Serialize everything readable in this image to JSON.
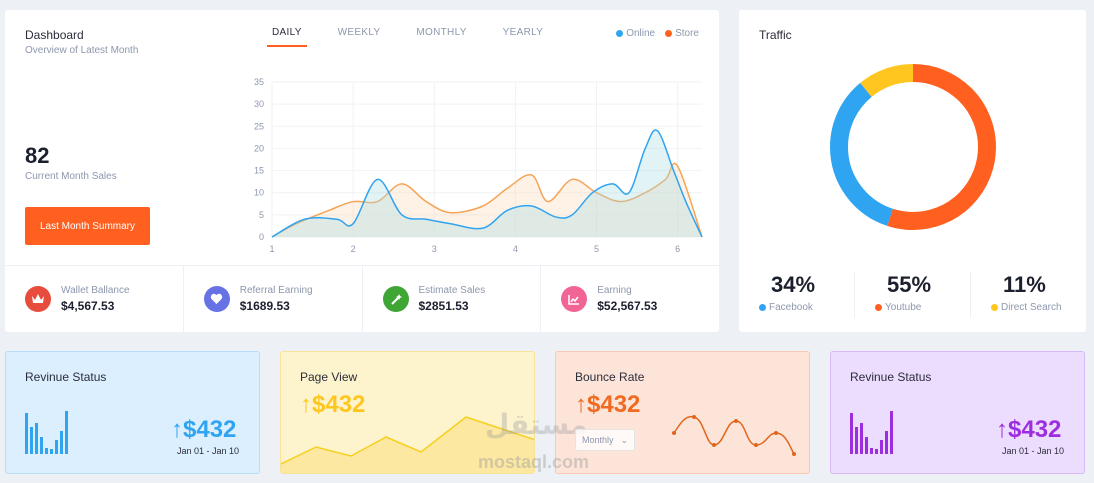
{
  "dashboard": {
    "title": "Dashboard",
    "subtitle": "Overview of Latest Month",
    "tabs": [
      {
        "label": "DAILY",
        "active": true
      },
      {
        "label": "WEEKLY",
        "active": false
      },
      {
        "label": "MONTHLY",
        "active": false
      },
      {
        "label": "YEARLY",
        "active": false
      }
    ],
    "legend": [
      {
        "label": "Online",
        "color": "#2fa4f1"
      },
      {
        "label": "Store",
        "color": "#ff5f1f"
      }
    ],
    "current_sales_value": "82",
    "current_sales_label": "Current Month Sales",
    "summary_button": "Last Month Summary"
  },
  "stats": [
    {
      "label": "Wallet Ballance",
      "value": "$4,567.53",
      "icon": "crown-icon",
      "color": "#e74c3c"
    },
    {
      "label": "Referral Earning",
      "value": "$1689.53",
      "icon": "heart-icon",
      "color": "#6772e5"
    },
    {
      "label": "Estimate Sales",
      "value": "$2851.53",
      "icon": "magic-wand-icon",
      "color": "#3fa535"
    },
    {
      "label": "Earning",
      "value": "$52,567.53",
      "icon": "chart-icon",
      "color": "#f06595"
    }
  ],
  "traffic": {
    "title": "Traffic",
    "segments": [
      {
        "label": "Facebook",
        "value": "34%",
        "percent": 34,
        "color": "#2fa4f1"
      },
      {
        "label": "Youtube",
        "value": "55%",
        "percent": 55,
        "color": "#ff5f1f"
      },
      {
        "label": "Direct Search",
        "value": "11%",
        "percent": 11,
        "color": "#fec61e"
      }
    ]
  },
  "mini_cards": [
    {
      "title": "Revinue Status",
      "value": "$432",
      "date": "Jan 01 - Jan 10",
      "color": "#2fa4f1",
      "arrow": true
    },
    {
      "title": "Page View",
      "value": "$432",
      "color": "#fec61e",
      "arrow": true
    },
    {
      "title": "Bounce Rate",
      "value": "$432",
      "color": "#f06a21",
      "arrow": true,
      "select_value": "Monthly"
    },
    {
      "title": "Revinue Status",
      "value": "$432",
      "date": "Jan 01 - Jan 10",
      "color": "#9d2ee0",
      "arrow": true
    }
  ],
  "watermark": {
    "text": "mostaql.com",
    "text_ar": "مستقل"
  },
  "chart_data": {
    "type": "area",
    "x_ticks": [
      "1",
      "2",
      "3",
      "4",
      "5",
      "6"
    ],
    "y_ticks": [
      "0",
      "5",
      "10",
      "15",
      "20",
      "25",
      "30",
      "35"
    ],
    "xlim": [
      1,
      6.3
    ],
    "ylim": [
      0,
      35
    ],
    "series": [
      {
        "name": "Online",
        "color": "#2fa4f1",
        "x": [
          1,
          1.4,
          1.8,
          2.0,
          2.3,
          2.6,
          2.9,
          3.2,
          3.6,
          3.9,
          4.2,
          4.5,
          4.7,
          4.95,
          5.2,
          5.4,
          5.6,
          5.75,
          5.95,
          6.1,
          6.3
        ],
        "y": [
          0,
          4,
          4,
          3,
          13,
          5,
          4,
          3,
          2,
          6,
          7,
          4.5,
          5,
          10,
          12,
          10,
          20,
          24,
          15,
          8,
          0
        ]
      },
      {
        "name": "Store",
        "color": "#f5a455",
        "x": [
          1,
          1.3,
          1.7,
          2.0,
          2.3,
          2.6,
          2.9,
          3.2,
          3.6,
          3.9,
          4.2,
          4.4,
          4.7,
          5.0,
          5.3,
          5.6,
          5.85,
          6.0,
          6.3
        ],
        "y": [
          0,
          3,
          6,
          8,
          8,
          12,
          8,
          5.5,
          7,
          11,
          14,
          8,
          13,
          10,
          8,
          10,
          13,
          16,
          0
        ]
      }
    ]
  }
}
